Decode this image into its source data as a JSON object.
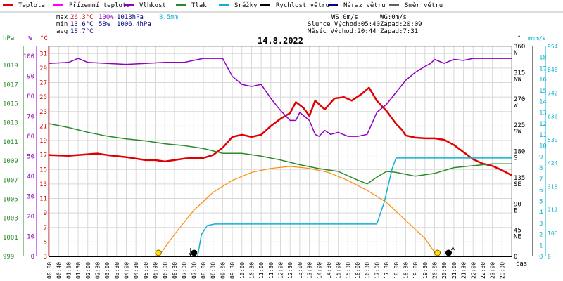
{
  "legend": [
    {
      "label": "Teplota",
      "color": "#e00000"
    },
    {
      "label": "Přízemní teplota",
      "color": "#ff00ff"
    },
    {
      "label": "Vlhkost",
      "color": "#9000c0"
    },
    {
      "label": "Tlak",
      "color": "#2a8a2a"
    },
    {
      "label": "Srážky",
      "color": "#10b0d0"
    },
    {
      "label": "Rychlost větru",
      "color": "#000000"
    },
    {
      "label": "Náraz větru",
      "color": "#000080"
    },
    {
      "label": "Směr větru",
      "color": "#606060"
    }
  ],
  "stats": {
    "max_label": "max",
    "max_temp": "26.3°C",
    "max_hum": "100%",
    "max_press": "1013hPa",
    "precip": "8.5mm",
    "min_label": "min",
    "min_temp": "13.6°C",
    "min_hum": "58%",
    "min_press": "1006.4hPa",
    "avg_label": "avg",
    "avg_temp": "18.7°C",
    "ws": "WS:0m/s",
    "wg": "WG:0m/s",
    "sun_rise": "Slunce Východ:05:40",
    "sun_set": "Západ:20:09",
    "moon_rise": "Měsíc  Východ:20:44",
    "moon_set": "Západ:7:31"
  },
  "colors": {
    "sun": "#ff8c00",
    "temp": "#e00000",
    "hum": "#9000c0",
    "press": "#2a8a2a",
    "rain": "#10b0d0",
    "grid": "#d8d8d8"
  },
  "chart_data": {
    "type": "line",
    "title": "14.8.2022",
    "xlabel": "čas",
    "x_ticks": [
      "00:00",
      "00:40",
      "01:10",
      "01:30",
      "02:00",
      "02:30",
      "03:00",
      "03:30",
      "04:00",
      "04:30",
      "05:00",
      "05:30",
      "06:00",
      "06:30",
      "07:00",
      "07:30",
      "08:00",
      "08:30",
      "09:00",
      "09:30",
      "10:00",
      "10:30",
      "11:00",
      "11:30",
      "12:00",
      "12:30",
      "13:00",
      "13:30",
      "14:00",
      "14:30",
      "15:00",
      "15:30",
      "16:00",
      "16:30",
      "17:00",
      "17:30",
      "18:00",
      "18:30",
      "19:00",
      "19:30",
      "20:00",
      "20:30",
      "21:00",
      "21:30",
      "22:00",
      "22:30",
      "23:00",
      "23:30"
    ],
    "x_range": [
      0,
      24
    ],
    "axes": {
      "hpa": {
        "label": "hPa",
        "ticks": [
          "1019",
          "1017",
          "1015",
          "1013",
          "1011",
          "1009",
          "1007",
          "1005",
          "1003",
          "1001",
          "999"
        ],
        "range": [
          999,
          1021
        ]
      },
      "percent": {
        "label": "%",
        "ticks": [
          "100",
          "90",
          "80",
          "70",
          "60",
          "50",
          "40",
          "30",
          "20",
          "10",
          "0"
        ],
        "range": [
          0,
          105
        ]
      },
      "celsius": {
        "label": "°C",
        "ticks": [
          "31",
          "29",
          "27",
          "25",
          "23",
          "21",
          "19",
          "17",
          "15",
          "13",
          "11",
          "9",
          "7",
          "5",
          "3"
        ],
        "range": [
          3,
          32
        ]
      },
      "degrees": {
        "label": "°",
        "ticks": [
          "360",
          "315",
          "270",
          "225",
          "180",
          "135",
          "90",
          "45",
          "0"
        ],
        "dirs": [
          "N",
          "NW",
          "W",
          "SW",
          "S",
          "SE",
          "E",
          "NE",
          ""
        ],
        "range": [
          0,
          360
        ]
      },
      "ms": {
        "label": "m/s",
        "ticks": [
          "18",
          "17",
          "16",
          "15",
          "14",
          "13",
          "12",
          "11",
          "10",
          "9",
          "8",
          "7",
          "6",
          "5",
          "4",
          "3",
          "2",
          "1",
          "0"
        ],
        "range": [
          0,
          19
        ]
      },
      "mm": {
        "label": "mm",
        "ticks": [
          "954",
          "848",
          "742",
          "636",
          "530",
          "424",
          "318",
          "212",
          "106",
          "0"
        ],
        "range": [
          0,
          954
        ]
      }
    },
    "series": [
      {
        "name": "Teplota",
        "axis": "celsius",
        "color": "#e00000",
        "points": [
          [
            0,
            17
          ],
          [
            1,
            16.9
          ],
          [
            2,
            17.1
          ],
          [
            2.5,
            17.2
          ],
          [
            3,
            17
          ],
          [
            4,
            16.7
          ],
          [
            5,
            16.3
          ],
          [
            5.5,
            16.3
          ],
          [
            6,
            16.1
          ],
          [
            7,
            16.5
          ],
          [
            7.5,
            16.6
          ],
          [
            8,
            16.6
          ],
          [
            8.5,
            17
          ],
          [
            9,
            18
          ],
          [
            9.5,
            19.5
          ],
          [
            10,
            19.8
          ],
          [
            10.5,
            19.5
          ],
          [
            11,
            19.8
          ],
          [
            11.5,
            21
          ],
          [
            12,
            22
          ],
          [
            12.5,
            22.8
          ],
          [
            12.8,
            24.3
          ],
          [
            13.2,
            23.5
          ],
          [
            13.5,
            22.4
          ],
          [
            13.8,
            24.5
          ],
          [
            14.3,
            23.3
          ],
          [
            14.8,
            24.8
          ],
          [
            15.3,
            25
          ],
          [
            15.7,
            24.5
          ],
          [
            16.2,
            25.4
          ],
          [
            16.6,
            26.3
          ],
          [
            17,
            24.5
          ],
          [
            17.5,
            23.1
          ],
          [
            18,
            21.3
          ],
          [
            18.3,
            20.5
          ],
          [
            18.5,
            19.7
          ],
          [
            19,
            19.4
          ],
          [
            19.5,
            19.3
          ],
          [
            20,
            19.3
          ],
          [
            20.5,
            19.1
          ],
          [
            21,
            18.4
          ],
          [
            21.5,
            17.4
          ],
          [
            22,
            16.4
          ],
          [
            22.5,
            15.8
          ],
          [
            23,
            15.5
          ],
          [
            23.5,
            14.9
          ],
          [
            24,
            14.2
          ]
        ]
      },
      {
        "name": "Vlhkost",
        "axis": "percent",
        "color": "#9000c0",
        "points": [
          [
            0,
            96.5
          ],
          [
            1,
            97
          ],
          [
            1.5,
            99
          ],
          [
            2,
            97
          ],
          [
            3,
            96.5
          ],
          [
            4,
            96
          ],
          [
            5,
            96.5
          ],
          [
            6,
            97
          ],
          [
            7,
            97
          ],
          [
            7.5,
            98
          ],
          [
            8,
            99
          ],
          [
            9,
            99
          ],
          [
            9.5,
            90
          ],
          [
            10,
            86
          ],
          [
            10.5,
            85
          ],
          [
            11,
            86
          ],
          [
            11.5,
            79
          ],
          [
            12,
            73
          ],
          [
            12.5,
            68
          ],
          [
            12.8,
            68
          ],
          [
            13,
            72
          ],
          [
            13.5,
            68
          ],
          [
            13.8,
            61
          ],
          [
            14,
            60
          ],
          [
            14.3,
            63
          ],
          [
            14.6,
            61
          ],
          [
            15,
            62
          ],
          [
            15.5,
            60
          ],
          [
            16,
            60
          ],
          [
            16.5,
            61
          ],
          [
            17,
            72
          ],
          [
            17.5,
            76
          ],
          [
            18,
            82
          ],
          [
            18.5,
            88
          ],
          [
            19,
            92
          ],
          [
            19.5,
            95
          ],
          [
            19.8,
            96.5
          ],
          [
            20,
            98.5
          ],
          [
            20.5,
            96.5
          ],
          [
            21,
            98.5
          ],
          [
            21.5,
            98
          ],
          [
            22,
            99
          ],
          [
            24,
            99
          ]
        ]
      },
      {
        "name": "Tlak",
        "axis": "hpa",
        "color": "#2a8a2a",
        "points": [
          [
            0,
            1012.9
          ],
          [
            1,
            1012.5
          ],
          [
            2,
            1012
          ],
          [
            3,
            1011.6
          ],
          [
            4,
            1011.3
          ],
          [
            5,
            1011.1
          ],
          [
            6,
            1010.8
          ],
          [
            7,
            1010.6
          ],
          [
            8,
            1010.3
          ],
          [
            9,
            1009.8
          ],
          [
            10,
            1009.8
          ],
          [
            11,
            1009.5
          ],
          [
            12,
            1009.1
          ],
          [
            13,
            1008.6
          ],
          [
            14,
            1008.2
          ],
          [
            15,
            1007.9
          ],
          [
            16,
            1007
          ],
          [
            16.5,
            1006.6
          ],
          [
            17,
            1007.3
          ],
          [
            17.5,
            1007.9
          ],
          [
            18,
            1007.8
          ],
          [
            19,
            1007.4
          ],
          [
            20,
            1007.7
          ],
          [
            21,
            1008.3
          ],
          [
            22,
            1008.5
          ],
          [
            23,
            1008.7
          ],
          [
            24,
            1008.7
          ]
        ]
      },
      {
        "name": "Srážky",
        "axis": "mm",
        "color": "#10b0d0",
        "points": [
          [
            0,
            0
          ],
          [
            7.7,
            0
          ],
          [
            7.9,
            100
          ],
          [
            8.2,
            140
          ],
          [
            8.6,
            147
          ],
          [
            16,
            147
          ],
          [
            17,
            147
          ],
          [
            17.4,
            250
          ],
          [
            17.8,
            400
          ],
          [
            18,
            447
          ],
          [
            24,
            447
          ]
        ]
      },
      {
        "name": "Slunce",
        "axis": "percent",
        "color": "#ff8c00",
        "points": [
          [
            5.67,
            0
          ],
          [
            6.5,
            11
          ],
          [
            7.5,
            23
          ],
          [
            8.5,
            32
          ],
          [
            9.5,
            38
          ],
          [
            10.5,
            42
          ],
          [
            11.5,
            44
          ],
          [
            12.5,
            45
          ],
          [
            13.5,
            44
          ],
          [
            14.5,
            42
          ],
          [
            15.5,
            38
          ],
          [
            16.5,
            33
          ],
          [
            17.5,
            27
          ],
          [
            18.5,
            18
          ],
          [
            19.5,
            9
          ],
          [
            20.15,
            0
          ]
        ]
      }
    ],
    "markers": [
      {
        "type": "sunrise",
        "x": 5.67
      },
      {
        "type": "moonset",
        "x": 7.52
      },
      {
        "type": "sunset",
        "x": 20.15
      },
      {
        "type": "moonrise",
        "x": 20.73
      }
    ]
  }
}
